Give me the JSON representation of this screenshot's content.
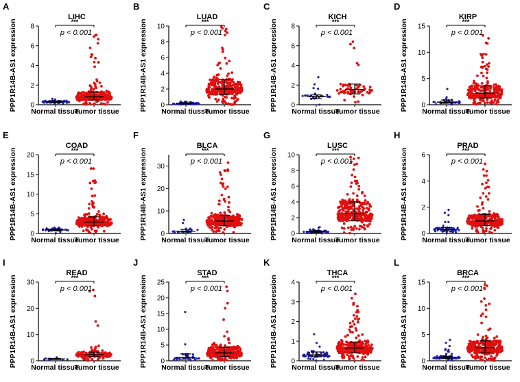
{
  "figure": {
    "y_axis_label": "PPP1R14B-AS1 expression",
    "colors": {
      "normal": "#1f1fa8",
      "tumor": "#e01010",
      "axis": "#000000"
    }
  },
  "chart_data": [
    {
      "type": "scatter",
      "panel": "A",
      "title": "LIHC",
      "significance": "***",
      "pvalue": "p < 0.001",
      "ylabel": "PPP1R14B-AS1 expression",
      "ylim": [
        0,
        8
      ],
      "yticks": [
        "0",
        "2",
        "4",
        "6",
        "8"
      ],
      "categories": [
        "Normal tissue",
        "Tumor tissue"
      ],
      "series": [
        {
          "name": "Normal tissue",
          "n": 50,
          "median": 0.3,
          "q1": 0.2,
          "q3": 0.4,
          "max": 0.6
        },
        {
          "name": "Tumor tissue",
          "n": 370,
          "median": 0.8,
          "q1": 0.5,
          "q3": 1.3,
          "max": 7.1
        }
      ]
    },
    {
      "type": "scatter",
      "panel": "B",
      "title": "LUAD",
      "significance": "***",
      "pvalue": "p < 0.001",
      "ylabel": "PPP1R14B-AS1 expression",
      "ylim": [
        0,
        10
      ],
      "yticks": [
        "0",
        "2",
        "4",
        "6",
        "8",
        "10"
      ],
      "categories": [
        "Normal tiusse",
        "Tumor tissue"
      ],
      "series": [
        {
          "name": "Normal tiusse",
          "n": 59,
          "median": 0.15,
          "q1": 0.1,
          "q3": 0.25,
          "max": 0.4
        },
        {
          "name": "Tumor tissue",
          "n": 513,
          "median": 2.0,
          "q1": 1.3,
          "q3": 3.2,
          "max": 9.9
        }
      ]
    },
    {
      "type": "scatter",
      "panel": "C",
      "title": "KICH",
      "significance": "***",
      "pvalue": "p < 0.001",
      "ylabel": "PPP1R14B-AS1 expression",
      "ylim": [
        0,
        8
      ],
      "yticks": [
        "0",
        "2",
        "4",
        "6",
        "8"
      ],
      "categories": [
        "Normal tissue",
        "Tumor tissue"
      ],
      "series": [
        {
          "name": "Normal tissue",
          "n": 25,
          "median": 0.85,
          "q1": 0.6,
          "q3": 1.0,
          "max": 2.8
        },
        {
          "name": "Tumor tissue",
          "n": 65,
          "median": 1.55,
          "q1": 1.1,
          "q3": 2.1,
          "max": 6.4
        }
      ]
    },
    {
      "type": "scatter",
      "panel": "D",
      "title": "KIRP",
      "significance": "***",
      "pvalue": "p < 0.001",
      "ylabel": "PPP1R14B-AS1 expression",
      "ylim": [
        0,
        15
      ],
      "yticks": [
        "0",
        "5",
        "10",
        "15"
      ],
      "categories": [
        "Normal tissue",
        "Tumor tissue"
      ],
      "series": [
        {
          "name": "Normal tissue",
          "n": 32,
          "median": 0.5,
          "q1": 0.3,
          "q3": 0.9,
          "max": 3.0
        },
        {
          "name": "Tumor tissue",
          "n": 289,
          "median": 2.2,
          "q1": 1.3,
          "q3": 3.6,
          "max": 13.2
        }
      ]
    },
    {
      "type": "scatter",
      "panel": "E",
      "title": "COAD",
      "significance": "***",
      "pvalue": "p < 0.001",
      "ylabel": "PPP1R14B-AS1 expression",
      "ylim": [
        0,
        20
      ],
      "yticks": [
        "0",
        "5",
        "10",
        "15",
        "20"
      ],
      "categories": [
        "Normal tissue",
        "Tumor tissue"
      ],
      "series": [
        {
          "name": "Normal tissue",
          "n": 41,
          "median": 0.9,
          "q1": 0.7,
          "q3": 1.1,
          "max": 1.5
        },
        {
          "name": "Tumor tissue",
          "n": 457,
          "median": 2.9,
          "q1": 2.0,
          "q3": 4.2,
          "max": 16.5
        }
      ]
    },
    {
      "type": "scatter",
      "panel": "F",
      "title": "BLCA",
      "significance": "***",
      "pvalue": "p < 0.001",
      "ylabel": "PPP1R14B-AS1 expression",
      "ylim": [
        0,
        35
      ],
      "yticks": [
        "0",
        "10",
        "20",
        "30"
      ],
      "categories": [
        "Normal tissue",
        "Tumor tissue"
      ],
      "series": [
        {
          "name": "Normal tissue",
          "n": 19,
          "median": 1.0,
          "q1": 0.6,
          "q3": 1.8,
          "max": 6.0
        },
        {
          "name": "Tumor tissue",
          "n": 408,
          "median": 5.5,
          "q1": 3.5,
          "q3": 8.0,
          "max": 31.5
        }
      ]
    },
    {
      "type": "scatter",
      "panel": "G",
      "title": "LUSC",
      "significance": "***",
      "pvalue": "p < 0.001",
      "ylabel": "PPP1R14B-AS1 expression",
      "ylim": [
        0,
        10
      ],
      "yticks": [
        "0",
        "2",
        "4",
        "6",
        "8",
        "10"
      ],
      "categories": [
        "Normal tissue",
        "Tumor tissue"
      ],
      "series": [
        {
          "name": "Normal tissue",
          "n": 49,
          "median": 0.25,
          "q1": 0.15,
          "q3": 0.35,
          "max": 0.8
        },
        {
          "name": "Tumor tissue",
          "n": 501,
          "median": 2.5,
          "q1": 1.6,
          "q3": 4.0,
          "max": 9.7
        }
      ]
    },
    {
      "type": "scatter",
      "panel": "H",
      "title": "PRAD",
      "significance": "***",
      "pvalue": "p < 0.001",
      "ylabel": "PPP1R14B-AS1 expression",
      "ylim": [
        0,
        6
      ],
      "yticks": [
        "0",
        "2",
        "4",
        "6"
      ],
      "categories": [
        "Normal tissue",
        "Tumor tissue"
      ],
      "series": [
        {
          "name": "Normal tissue",
          "n": 52,
          "median": 0.3,
          "q1": 0.2,
          "q3": 0.45,
          "max": 1.8
        },
        {
          "name": "Tumor tissue",
          "n": 497,
          "median": 0.95,
          "q1": 0.6,
          "q3": 1.45,
          "max": 5.3
        }
      ]
    },
    {
      "type": "scatter",
      "panel": "I",
      "title": "READ",
      "significance": "***",
      "pvalue": "p < 0.001",
      "ylabel": "PPP1R14B-AS1 expression",
      "ylim": [
        0,
        30
      ],
      "yticks": [
        "0",
        "10",
        "20",
        "30"
      ],
      "categories": [
        "Normal tissue",
        "Tumor tissue"
      ],
      "series": [
        {
          "name": "Normal tissue",
          "n": 10,
          "median": 0.7,
          "q1": 0.5,
          "q3": 0.9,
          "max": 1.3
        },
        {
          "name": "Tumor tissue",
          "n": 166,
          "median": 2.3,
          "q1": 1.6,
          "q3": 3.3,
          "max": 27.0
        }
      ]
    },
    {
      "type": "scatter",
      "panel": "J",
      "title": "STAD",
      "significance": "***",
      "pvalue": "p <  0.001",
      "ylabel": "PPP1R14B-AS1 expression",
      "ylim": [
        0,
        25
      ],
      "yticks": [
        "0",
        "5",
        "10",
        "15",
        "20",
        "25"
      ],
      "categories": [
        "Normal tissue",
        "Tumor tissue"
      ],
      "series": [
        {
          "name": "Normal tissue",
          "n": 32,
          "median": 1.0,
          "q1": 0.5,
          "q3": 2.2,
          "max": 15.5
        },
        {
          "name": "Tumor tissue",
          "n": 375,
          "median": 2.5,
          "q1": 1.4,
          "q3": 4.3,
          "max": 23.5
        }
      ]
    },
    {
      "type": "scatter",
      "panel": "K",
      "title": "THCA",
      "significance": "***",
      "pvalue": "p < 0.001",
      "ylabel": "PPP1R14B-AS1 expression",
      "ylim": [
        0,
        4
      ],
      "yticks": [
        "0",
        "1",
        "2",
        "3",
        "4"
      ],
      "categories": [
        "Normal tissue",
        "Tumor tissue"
      ],
      "series": [
        {
          "name": "Normal tissue",
          "n": 58,
          "median": 0.3,
          "q1": 0.2,
          "q3": 0.45,
          "max": 1.35
        },
        {
          "name": "Tumor tissue",
          "n": 510,
          "median": 0.65,
          "q1": 0.4,
          "q3": 0.95,
          "max": 3.4
        }
      ]
    },
    {
      "type": "scatter",
      "panel": "L",
      "title": "BRCA",
      "significance": "***",
      "pvalue": "p < 0.001",
      "ylabel": "PPP1R14B-AS1 expression",
      "ylim": [
        0,
        15
      ],
      "yticks": [
        "0",
        "5",
        "10",
        "15"
      ],
      "categories": [
        "Normal tissue",
        "Tumor tissue"
      ],
      "series": [
        {
          "name": "Normal tissue",
          "n": 113,
          "median": 0.6,
          "q1": 0.4,
          "q3": 0.85,
          "max": 4.0
        },
        {
          "name": "Tumor tissue",
          "n": 1102,
          "median": 2.5,
          "q1": 1.5,
          "q3": 3.8,
          "max": 14.5
        }
      ]
    }
  ]
}
